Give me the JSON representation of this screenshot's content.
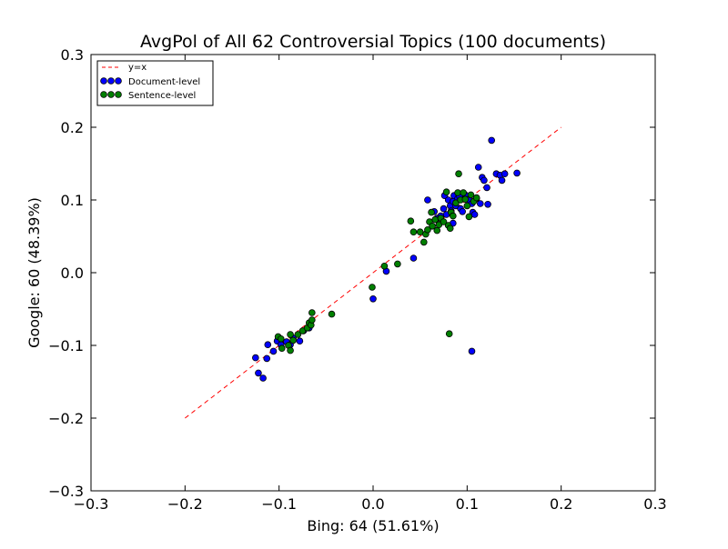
{
  "chart_data": {
    "type": "scatter",
    "title": "AvgPol of All 62 Controversial Topics (100 documents)",
    "xlabel": "Bing: 64 (51.61%)",
    "ylabel": "Google: 60 (48.39%)",
    "xlim": [
      -0.3,
      0.3
    ],
    "ylim": [
      -0.3,
      0.3
    ],
    "xticks": [
      "−0.3",
      "−0.2",
      "−0.1",
      "0.0",
      "0.1",
      "0.2",
      "0.3"
    ],
    "yticks": [
      "−0.3",
      "−0.2",
      "−0.1",
      "0.0",
      "0.1",
      "0.2",
      "0.3"
    ],
    "grid": false,
    "legend_position": "top-left",
    "reference_line": {
      "name": "y=x",
      "x": [
        -0.2,
        0.2
      ],
      "y": [
        -0.2,
        0.2
      ],
      "color": "#ff0000",
      "style": "dashed"
    },
    "series": [
      {
        "name": "Document-level",
        "color": "#0000ff",
        "points": [
          [
            -0.125,
            -0.117
          ],
          [
            -0.122,
            -0.138
          ],
          [
            -0.117,
            -0.145
          ],
          [
            -0.113,
            -0.118
          ],
          [
            -0.112,
            -0.099
          ],
          [
            -0.106,
            -0.108
          ],
          [
            -0.102,
            -0.094
          ],
          [
            -0.098,
            -0.099
          ],
          [
            -0.092,
            -0.095
          ],
          [
            -0.088,
            -0.099
          ],
          [
            -0.085,
            -0.09
          ],
          [
            -0.078,
            -0.094
          ],
          [
            -0.074,
            -0.08
          ],
          [
            -0.068,
            -0.076
          ],
          [
            0.0,
            -0.036
          ],
          [
            0.014,
            0.002
          ],
          [
            0.043,
            0.02
          ],
          [
            0.058,
            0.1
          ],
          [
            0.065,
            0.084
          ],
          [
            0.068,
            0.075
          ],
          [
            0.072,
            0.078
          ],
          [
            0.075,
            0.088
          ],
          [
            0.076,
            0.106
          ],
          [
            0.078,
            0.08
          ],
          [
            0.08,
            0.1
          ],
          [
            0.082,
            0.092
          ],
          [
            0.083,
            0.085
          ],
          [
            0.085,
            0.068
          ],
          [
            0.085,
            0.098
          ],
          [
            0.086,
            0.106
          ],
          [
            0.088,
            0.092
          ],
          [
            0.09,
            0.102
          ],
          [
            0.092,
            0.105
          ],
          [
            0.093,
            0.088
          ],
          [
            0.095,
            0.084
          ],
          [
            0.098,
            0.107
          ],
          [
            0.102,
            0.1
          ],
          [
            0.105,
            0.095
          ],
          [
            0.106,
            0.083
          ],
          [
            0.108,
            0.08
          ],
          [
            0.11,
            0.102
          ],
          [
            0.112,
            0.145
          ],
          [
            0.114,
            0.095
          ],
          [
            0.116,
            0.131
          ],
          [
            0.118,
            0.127
          ],
          [
            0.121,
            0.117
          ],
          [
            0.122,
            0.094
          ],
          [
            0.126,
            0.182
          ],
          [
            0.131,
            0.136
          ],
          [
            0.135,
            0.134
          ],
          [
            0.137,
            0.127
          ],
          [
            0.14,
            0.136
          ],
          [
            0.153,
            0.137
          ],
          [
            0.105,
            -0.108
          ]
        ]
      },
      {
        "name": "Sentence-level",
        "color": "#007f00",
        "points": [
          [
            -0.101,
            -0.088
          ],
          [
            -0.098,
            -0.091
          ],
          [
            -0.097,
            -0.104
          ],
          [
            -0.09,
            -0.1
          ],
          [
            -0.088,
            -0.085
          ],
          [
            -0.088,
            -0.107
          ],
          [
            -0.085,
            -0.093
          ],
          [
            -0.08,
            -0.085
          ],
          [
            -0.075,
            -0.08
          ],
          [
            -0.07,
            -0.076
          ],
          [
            -0.068,
            -0.069
          ],
          [
            -0.066,
            -0.072
          ],
          [
            -0.065,
            -0.065
          ],
          [
            -0.065,
            -0.055
          ],
          [
            -0.044,
            -0.057
          ],
          [
            -0.001,
            -0.02
          ],
          [
            0.012,
            0.009
          ],
          [
            0.026,
            0.012
          ],
          [
            0.04,
            0.071
          ],
          [
            0.043,
            0.056
          ],
          [
            0.05,
            0.056
          ],
          [
            0.054,
            0.042
          ],
          [
            0.056,
            0.053
          ],
          [
            0.058,
            0.059
          ],
          [
            0.06,
            0.07
          ],
          [
            0.062,
            0.083
          ],
          [
            0.063,
            0.064
          ],
          [
            0.066,
            0.073
          ],
          [
            0.068,
            0.058
          ],
          [
            0.07,
            0.066
          ],
          [
            0.072,
            0.075
          ],
          [
            0.075,
            0.07
          ],
          [
            0.078,
            0.111
          ],
          [
            0.08,
            0.065
          ],
          [
            0.082,
            0.061
          ],
          [
            0.083,
            0.083
          ],
          [
            0.085,
            0.078
          ],
          [
            0.088,
            0.096
          ],
          [
            0.09,
            0.11
          ],
          [
            0.091,
            0.136
          ],
          [
            0.093,
            0.1
          ],
          [
            0.096,
            0.11
          ],
          [
            0.098,
            0.101
          ],
          [
            0.1,
            0.092
          ],
          [
            0.102,
            0.077
          ],
          [
            0.104,
            0.107
          ],
          [
            0.107,
            0.098
          ],
          [
            0.11,
            0.103
          ],
          [
            0.081,
            -0.084
          ]
        ]
      }
    ]
  }
}
